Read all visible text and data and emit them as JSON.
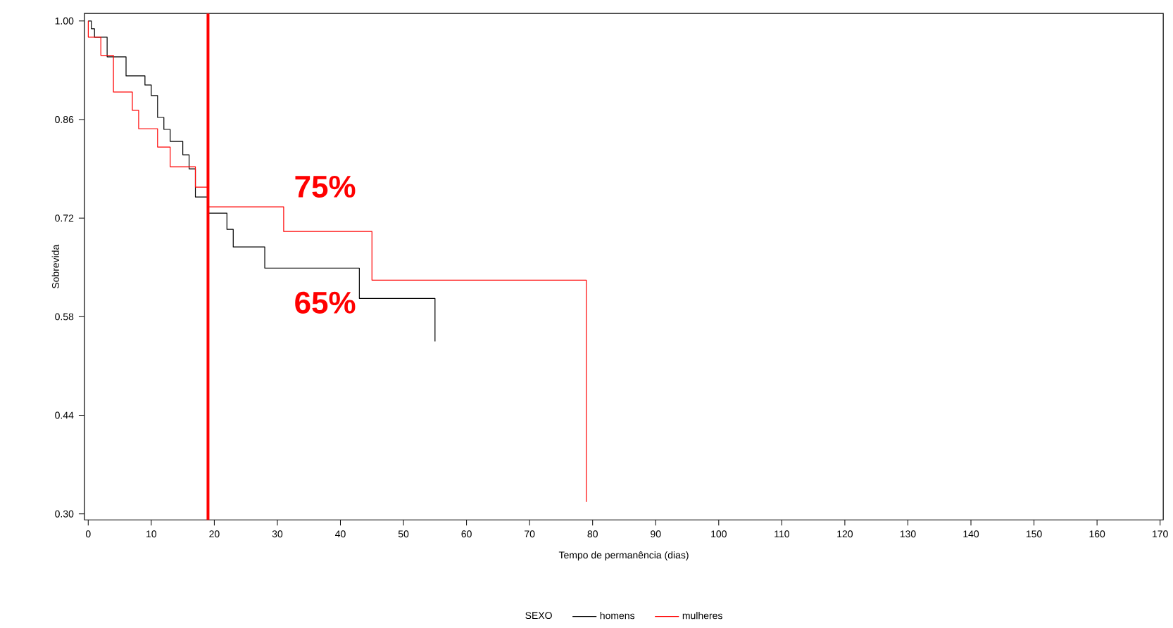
{
  "chart_data": {
    "type": "step",
    "xlabel": "Tempo de permanência (dias)",
    "ylabel": "Sobrevida",
    "legend": "bottom",
    "legend_title": "SEXO",
    "xlim": [
      -0.6,
      170.5
    ],
    "ylim": [
      0.2915,
      1.0106
    ],
    "xticks": [
      0,
      10,
      20,
      30,
      40,
      50,
      60,
      70,
      80,
      90,
      100,
      110,
      120,
      130,
      140,
      150,
      160,
      170
    ],
    "yticks": [
      {
        "value": 0.3,
        "label": "0.30"
      },
      {
        "value": 0.44,
        "label": "0.44"
      },
      {
        "value": 0.58,
        "label": "0.58"
      },
      {
        "value": 0.72,
        "label": "0.72"
      },
      {
        "value": 0.86,
        "label": "0.86"
      },
      {
        "value": 1.0,
        "label": "1.00"
      }
    ],
    "series": [
      {
        "name": "homens",
        "color": "#000000",
        "x": [
          0,
          0.5,
          1,
          3,
          6,
          9,
          10,
          11,
          12,
          13,
          15,
          16,
          17,
          19,
          22,
          23,
          28,
          43,
          55
        ],
        "values": [
          1.0,
          0.989,
          0.977,
          0.949,
          0.922,
          0.909,
          0.894,
          0.863,
          0.846,
          0.829,
          0.81,
          0.79,
          0.75,
          0.727,
          0.704,
          0.679,
          0.649,
          0.606,
          0.545
        ]
      },
      {
        "name": "mulheres",
        "color": "#ff0000",
        "x": [
          0,
          0.01,
          2,
          4,
          7,
          8,
          11,
          13,
          17,
          19,
          31,
          45,
          79
        ],
        "values": [
          1.0,
          0.977,
          0.951,
          0.899,
          0.873,
          0.847,
          0.821,
          0.793,
          0.764,
          0.736,
          0.701,
          0.632,
          0.317
        ]
      }
    ],
    "ref_lines": [
      {
        "axis": "x",
        "value": 19,
        "color": "#ff0000"
      }
    ],
    "annotations": [
      "75%",
      "65%"
    ]
  }
}
